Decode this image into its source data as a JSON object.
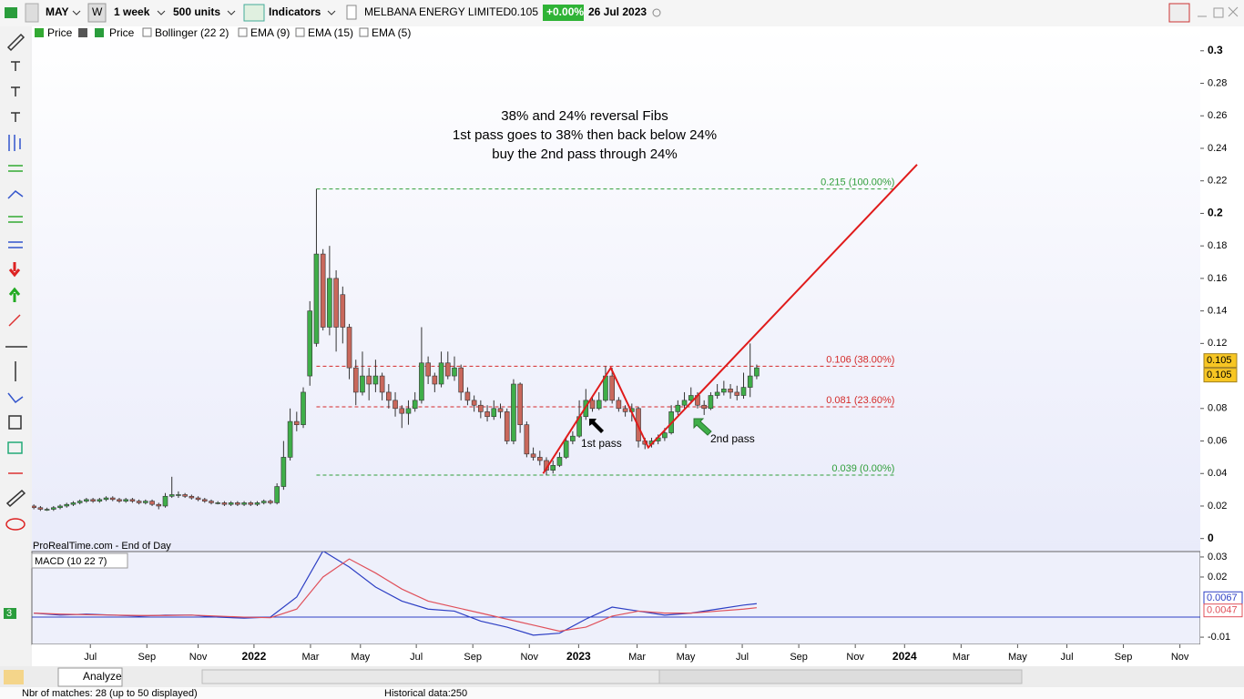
{
  "toolbar": {
    "symbol": "MAY",
    "period_button": "W",
    "period": "1 week",
    "units": "500 units",
    "indicators": "Indicators",
    "instrument": "MELBANA ENERGY LIMITED",
    "last": "0.105",
    "change": "+0.00%",
    "date": "26 Jul 2023"
  },
  "legend": [
    "Price",
    "Price",
    "Bollinger (22 2)",
    "EMA (9)",
    "EMA (15)",
    "EMA (5)"
  ],
  "source": "ProRealTime.com - End of Day",
  "bottom": {
    "badge": "3",
    "analyze": "Analyze",
    "matches": "Nbr of matches: 28 (up to 50 displayed)",
    "history": "Historical data:250"
  },
  "chart_data": [
    {
      "type": "candlestick",
      "xlim": [
        -0.3,
        177.5
      ],
      "ylim": [
        -0.008,
        0.315
      ],
      "xticks": [
        {
          "value": 8.6,
          "label": "Jul"
        },
        {
          "value": 17.2,
          "label": "Sep"
        },
        {
          "value": 25.0,
          "label": "Nov"
        },
        {
          "value": 33.5,
          "label": "2022"
        },
        {
          "value": 42.1,
          "label": "Mar"
        },
        {
          "value": 49.7,
          "label": "May"
        },
        {
          "value": 58.2,
          "label": "Jul"
        },
        {
          "value": 66.8,
          "label": "Sep"
        },
        {
          "value": 75.4,
          "label": "Nov"
        },
        {
          "value": 82.9,
          "label": "2023"
        },
        {
          "value": 91.8,
          "label": "Mar"
        },
        {
          "value": 99.2,
          "label": "May"
        },
        {
          "value": 107.8,
          "label": "Jul"
        },
        {
          "value": 116.4,
          "label": "Sep"
        },
        {
          "value": 125.0,
          "label": "Nov"
        },
        {
          "value": 132.5,
          "label": "2024"
        },
        {
          "value": 141.1,
          "label": "Mar"
        },
        {
          "value": 149.7,
          "label": "May"
        },
        {
          "value": 157.2,
          "label": "Jul"
        },
        {
          "value": 165.8,
          "label": "Sep"
        },
        {
          "value": 174.4,
          "label": "Nov"
        }
      ],
      "yticks": [
        0.3,
        0.28,
        0.26,
        0.24,
        0.22,
        0.2,
        0.18,
        0.16,
        0.14,
        0.12,
        0.08,
        0.06,
        0.04,
        0.02,
        0
      ],
      "up_color": "#3fae49",
      "down_color": "#c9685c",
      "ohlc": [
        [
          0.02,
          0.021,
          0.018,
          0.019
        ],
        [
          0.019,
          0.02,
          0.017,
          0.018
        ],
        [
          0.018,
          0.019,
          0.017,
          0.018
        ],
        [
          0.018,
          0.02,
          0.017,
          0.019
        ],
        [
          0.019,
          0.021,
          0.018,
          0.02
        ],
        [
          0.02,
          0.022,
          0.019,
          0.021
        ],
        [
          0.021,
          0.023,
          0.02,
          0.022
        ],
        [
          0.022,
          0.024,
          0.021,
          0.023
        ],
        [
          0.023,
          0.025,
          0.022,
          0.024
        ],
        [
          0.024,
          0.025,
          0.022,
          0.023
        ],
        [
          0.023,
          0.025,
          0.022,
          0.024
        ],
        [
          0.024,
          0.026,
          0.023,
          0.025
        ],
        [
          0.025,
          0.026,
          0.023,
          0.024
        ],
        [
          0.024,
          0.025,
          0.022,
          0.023
        ],
        [
          0.023,
          0.025,
          0.022,
          0.024
        ],
        [
          0.024,
          0.025,
          0.022,
          0.023
        ],
        [
          0.023,
          0.024,
          0.021,
          0.022
        ],
        [
          0.022,
          0.024,
          0.021,
          0.023
        ],
        [
          0.023,
          0.024,
          0.02,
          0.021
        ],
        [
          0.021,
          0.022,
          0.018,
          0.02
        ],
        [
          0.02,
          0.028,
          0.019,
          0.026
        ],
        [
          0.026,
          0.038,
          0.025,
          0.027
        ],
        [
          0.027,
          0.029,
          0.025,
          0.027
        ],
        [
          0.027,
          0.028,
          0.025,
          0.026
        ],
        [
          0.026,
          0.027,
          0.024,
          0.025
        ],
        [
          0.025,
          0.026,
          0.023,
          0.024
        ],
        [
          0.024,
          0.025,
          0.022,
          0.023
        ],
        [
          0.023,
          0.024,
          0.021,
          0.022
        ],
        [
          0.022,
          0.023,
          0.021,
          0.022
        ],
        [
          0.022,
          0.023,
          0.02,
          0.021
        ],
        [
          0.021,
          0.023,
          0.02,
          0.022
        ],
        [
          0.022,
          0.023,
          0.02,
          0.021
        ],
        [
          0.021,
          0.023,
          0.02,
          0.022
        ],
        [
          0.022,
          0.023,
          0.02,
          0.021
        ],
        [
          0.021,
          0.023,
          0.02,
          0.022
        ],
        [
          0.022,
          0.024,
          0.021,
          0.023
        ],
        [
          0.023,
          0.024,
          0.021,
          0.022
        ],
        [
          0.022,
          0.034,
          0.021,
          0.032
        ],
        [
          0.032,
          0.06,
          0.03,
          0.05
        ],
        [
          0.05,
          0.08,
          0.048,
          0.072
        ],
        [
          0.072,
          0.078,
          0.066,
          0.07
        ],
        [
          0.07,
          0.093,
          0.068,
          0.09
        ],
        [
          0.1,
          0.146,
          0.094,
          0.14
        ],
        [
          0.12,
          0.215,
          0.118,
          0.175
        ],
        [
          0.175,
          0.178,
          0.128,
          0.13
        ],
        [
          0.13,
          0.18,
          0.125,
          0.16
        ],
        [
          0.16,
          0.165,
          0.115,
          0.13
        ],
        [
          0.15,
          0.155,
          0.12,
          0.13
        ],
        [
          0.13,
          0.132,
          0.098,
          0.105
        ],
        [
          0.105,
          0.11,
          0.082,
          0.09
        ],
        [
          0.09,
          0.115,
          0.088,
          0.1
        ],
        [
          0.1,
          0.105,
          0.085,
          0.095
        ],
        [
          0.095,
          0.11,
          0.09,
          0.1
        ],
        [
          0.1,
          0.102,
          0.085,
          0.09
        ],
        [
          0.09,
          0.095,
          0.08,
          0.085
        ],
        [
          0.085,
          0.09,
          0.075,
          0.08
        ],
        [
          0.08,
          0.082,
          0.068,
          0.077
        ],
        [
          0.077,
          0.085,
          0.07,
          0.08
        ],
        [
          0.08,
          0.09,
          0.078,
          0.085
        ],
        [
          0.085,
          0.13,
          0.083,
          0.108
        ],
        [
          0.108,
          0.112,
          0.095,
          0.1
        ],
        [
          0.1,
          0.102,
          0.09,
          0.095
        ],
        [
          0.095,
          0.115,
          0.093,
          0.108
        ],
        [
          0.108,
          0.115,
          0.098,
          0.1
        ],
        [
          0.1,
          0.112,
          0.097,
          0.105
        ],
        [
          0.105,
          0.107,
          0.085,
          0.09
        ],
        [
          0.09,
          0.093,
          0.082,
          0.085
        ],
        [
          0.085,
          0.088,
          0.078,
          0.082
        ],
        [
          0.082,
          0.085,
          0.074,
          0.078
        ],
        [
          0.078,
          0.082,
          0.072,
          0.075
        ],
        [
          0.075,
          0.085,
          0.073,
          0.08
        ],
        [
          0.08,
          0.083,
          0.074,
          0.078
        ],
        [
          0.078,
          0.08,
          0.058,
          0.06
        ],
        [
          0.06,
          0.098,
          0.058,
          0.095
        ],
        [
          0.095,
          0.096,
          0.065,
          0.07
        ],
        [
          0.07,
          0.072,
          0.05,
          0.052
        ],
        [
          0.052,
          0.056,
          0.048,
          0.05
        ],
        [
          0.05,
          0.054,
          0.045,
          0.048
        ],
        [
          0.048,
          0.05,
          0.039,
          0.042
        ],
        [
          0.042,
          0.048,
          0.04,
          0.045
        ],
        [
          0.045,
          0.053,
          0.044,
          0.05
        ],
        [
          0.05,
          0.062,
          0.049,
          0.06
        ],
        [
          0.06,
          0.066,
          0.058,
          0.063
        ],
        [
          0.063,
          0.085,
          0.062,
          0.075
        ],
        [
          0.075,
          0.092,
          0.073,
          0.085
        ],
        [
          0.085,
          0.088,
          0.078,
          0.08
        ],
        [
          0.08,
          0.09,
          0.079,
          0.085
        ],
        [
          0.085,
          0.106,
          0.084,
          0.1
        ],
        [
          0.1,
          0.105,
          0.083,
          0.085
        ],
        [
          0.085,
          0.087,
          0.078,
          0.08
        ],
        [
          0.08,
          0.082,
          0.075,
          0.078
        ],
        [
          0.078,
          0.083,
          0.072,
          0.08
        ],
        [
          0.08,
          0.081,
          0.056,
          0.06
        ],
        [
          0.06,
          0.062,
          0.055,
          0.058
        ],
        [
          0.058,
          0.062,
          0.056,
          0.06
        ],
        [
          0.06,
          0.064,
          0.058,
          0.062
        ],
        [
          0.062,
          0.068,
          0.06,
          0.065
        ],
        [
          0.065,
          0.082,
          0.064,
          0.078
        ],
        [
          0.078,
          0.085,
          0.076,
          0.082
        ],
        [
          0.082,
          0.09,
          0.08,
          0.085
        ],
        [
          0.085,
          0.093,
          0.083,
          0.088
        ],
        [
          0.088,
          0.09,
          0.08,
          0.082
        ],
        [
          0.082,
          0.085,
          0.076,
          0.08
        ],
        [
          0.08,
          0.09,
          0.079,
          0.088
        ],
        [
          0.088,
          0.095,
          0.086,
          0.09
        ],
        [
          0.09,
          0.097,
          0.088,
          0.092
        ],
        [
          0.092,
          0.095,
          0.086,
          0.09
        ],
        [
          0.09,
          0.094,
          0.085,
          0.088
        ],
        [
          0.088,
          0.102,
          0.086,
          0.093
        ],
        [
          0.093,
          0.12,
          0.087,
          0.1
        ],
        [
          0.1,
          0.107,
          0.098,
          0.105
        ]
      ],
      "fibs": [
        {
          "value": 0.215,
          "label": "0.215 (100.00%)",
          "color": "#2f9e3a"
        },
        {
          "value": 0.106,
          "label": "0.106 (38.00%)",
          "color": "#d42a2a"
        },
        {
          "value": 0.081,
          "label": "0.081 (23.60%)",
          "color": "#d42a2a"
        },
        {
          "value": 0.039,
          "label": "0.039 (0.00%)",
          "color": "#2f9e3a"
        }
      ],
      "fib_x": [
        43,
        131
      ],
      "trendline": {
        "x": [
          77.5,
          87.8,
          93.5,
          134.4
        ],
        "y": [
          0.04,
          0.105,
          0.056,
          0.23
        ],
        "color": "#e01b1b"
      },
      "annotation": [
        "38% and 24% reversal Fibs",
        "1st pass goes to 38% then back below 24%",
        "buy the 2nd pass through 24%"
      ],
      "pass_labels": [
        "1st pass",
        "2nd pass"
      ],
      "price_tags": [
        0.105,
        0.105
      ]
    },
    {
      "type": "line",
      "title": "MACD (10 22 7)",
      "xlim": [
        -0.3,
        177.5
      ],
      "ylim": [
        -0.0136,
        0.0327
      ],
      "yticks": [
        0.03,
        0.02,
        -0.01
      ],
      "x": [
        0,
        4,
        8,
        12,
        16,
        20,
        24,
        28,
        32,
        36,
        40,
        44,
        48,
        52,
        56,
        60,
        64,
        68,
        72,
        76,
        80,
        84,
        88,
        92,
        96,
        100,
        104,
        108,
        110
      ],
      "series": [
        {
          "name": "MACD",
          "color": "#2d3fc4",
          "values": [
            0.002,
            0.001,
            0.0015,
            0.001,
            0.0005,
            0.001,
            0.001,
            0,
            -0.0005,
            0,
            0.01,
            0.033,
            0.025,
            0.015,
            0.008,
            0.004,
            0.003,
            -0.002,
            -0.005,
            -0.009,
            -0.008,
            -0.001,
            0.005,
            0.003,
            0.001,
            0.002,
            0.004,
            0.006,
            0.0067
          ]
        },
        {
          "name": "Signal",
          "color": "#e0505a",
          "values": [
            0.002,
            0.0015,
            0.0012,
            0.001,
            0.0008,
            0.0008,
            0.001,
            0.0005,
            0,
            -0.0003,
            0.004,
            0.02,
            0.029,
            0.022,
            0.014,
            0.008,
            0.005,
            0.002,
            -0.001,
            -0.004,
            -0.007,
            -0.005,
            0.0005,
            0.003,
            0.002,
            0.002,
            0.003,
            0.004,
            0.0047
          ]
        }
      ],
      "tags": [
        {
          "value": 0.0067,
          "label": "0.0067",
          "color": "#2d3fc4"
        },
        {
          "value": 0.0047,
          "label": "0.0047",
          "color": "#e0505a"
        }
      ]
    }
  ]
}
